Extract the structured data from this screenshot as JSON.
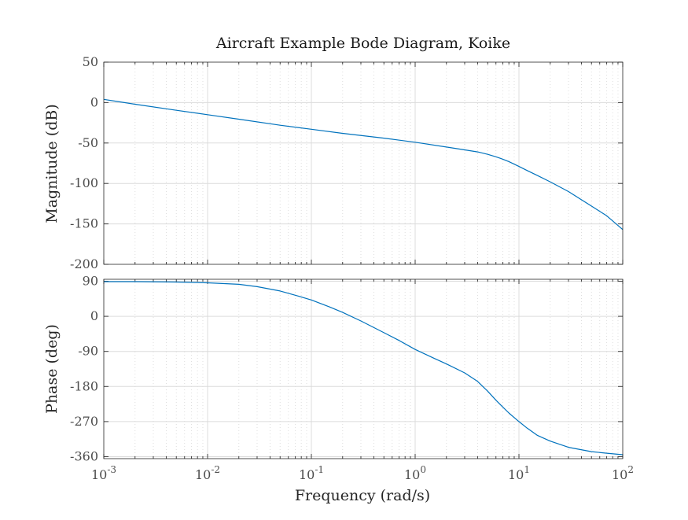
{
  "chart_data": {
    "type": "line",
    "title": "Aircraft Example Bode Diagram, Koike",
    "xlabel": "Frequency (rad/s)",
    "xscale": "log",
    "xlim": [
      0.001,
      100
    ],
    "x_tick_bases": [
      "10",
      "10",
      "10",
      "10",
      "10",
      "10"
    ],
    "x_tick_exponents": [
      "-3",
      "-2",
      "-1",
      "0",
      "1",
      "2"
    ],
    "grid": true,
    "line_color": "#0072BD",
    "panels": [
      {
        "name": "magnitude",
        "ylabel": "Magnitude (dB)",
        "ylim": [
          -200,
          50
        ],
        "yticks": [
          50,
          0,
          -50,
          -100,
          -150,
          -200
        ],
        "ytick_labels": [
          "50",
          "0",
          "-50",
          "-100",
          "-150",
          "-200"
        ],
        "series": [
          {
            "x": [
              0.001,
              0.002,
              0.005,
              0.01,
              0.02,
              0.05,
              0.1,
              0.2,
              0.5,
              1,
              2,
              3,
              4,
              5,
              6,
              7,
              8,
              10,
              12,
              15,
              20,
              30,
              50,
              70,
              100
            ],
            "y": [
              4,
              -2,
              -9.5,
              -15,
              -20.5,
              -28,
              -33,
              -38,
              -44,
              -49,
              -55,
              -58.5,
              -61,
              -64,
              -67,
              -70,
              -73,
              -79,
              -84,
              -90,
              -98,
              -110,
              -128,
              -140,
              -157
            ]
          }
        ]
      },
      {
        "name": "phase",
        "ylabel": "Phase (deg)",
        "ylim": [
          -365,
          95
        ],
        "yticks": [
          90,
          0,
          -90,
          -180,
          -270,
          -360
        ],
        "ytick_labels": [
          "90",
          "0",
          "-90",
          "-180",
          "-270",
          "-360"
        ],
        "series": [
          {
            "x": [
              0.001,
              0.002,
              0.005,
              0.01,
              0.02,
              0.03,
              0.05,
              0.07,
              0.1,
              0.15,
              0.2,
              0.3,
              0.5,
              0.7,
              1,
              1.5,
              2,
              3,
              4,
              5,
              6,
              7,
              8,
              10,
              12,
              15,
              20,
              30,
              50,
              70,
              100
            ],
            "y": [
              89,
              89,
              88,
              86,
              82,
              76,
              65,
              54,
              42,
              24,
              10,
              -12,
              -42,
              -62,
              -85,
              -107,
              -122,
              -145,
              -167,
              -192,
              -215,
              -233,
              -248,
              -270,
              -287,
              -305,
              -320,
              -336,
              -347,
              -351,
              -355
            ]
          }
        ]
      }
    ]
  }
}
